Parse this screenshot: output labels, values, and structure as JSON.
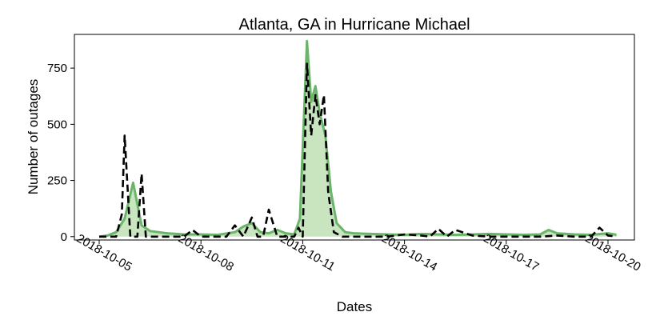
{
  "chart_data": {
    "type": "line",
    "title": "Atlanta, GA in Hurricane Michael",
    "xlabel": "Dates",
    "ylabel": "Number of outages",
    "x_ticks": [
      "2018-10-05",
      "2018-10-08",
      "2018-10-11",
      "2018-10-14",
      "2018-10-17",
      "2018-10-20"
    ],
    "y_ticks": [
      0,
      250,
      500,
      750
    ],
    "xlim": [
      "2018-10-05",
      "2018-10-20"
    ],
    "ylim": [
      -15,
      900
    ],
    "grid": false,
    "series": [
      {
        "style": "solid-filled",
        "color": "#6ab56a",
        "fill": "#c8e5c0",
        "x": [
          "2018-10-05T00:00",
          "2018-10-05T06:00",
          "2018-10-05T12:00",
          "2018-10-05T18:00",
          "2018-10-06T00:00",
          "2018-10-06T06:00",
          "2018-10-06T12:00",
          "2018-10-06T18:00",
          "2018-10-07T00:00",
          "2018-10-07T12:00",
          "2018-10-08T00:00",
          "2018-10-08T12:00",
          "2018-10-09T00:00",
          "2018-10-09T06:00",
          "2018-10-09T12:00",
          "2018-10-09T18:00",
          "2018-10-10T00:00",
          "2018-10-10T06:00",
          "2018-10-10T12:00",
          "2018-10-10T18:00",
          "2018-10-10T22:00",
          "2018-10-11T03:00",
          "2018-10-11T06:00",
          "2018-10-11T09:00",
          "2018-10-11T12:00",
          "2018-10-11T16:00",
          "2018-10-11T20:00",
          "2018-10-12T00:00",
          "2018-10-12T06:00",
          "2018-10-12T12:00",
          "2018-10-13T00:00",
          "2018-10-13T12:00",
          "2018-10-14T00:00",
          "2018-10-14T12:00",
          "2018-10-15T00:00",
          "2018-10-15T12:00",
          "2018-10-16T00:00",
          "2018-10-16T12:00",
          "2018-10-17T00:00",
          "2018-10-17T12:00",
          "2018-10-18T00:00",
          "2018-10-18T06:00",
          "2018-10-18T12:00",
          "2018-10-19T00:00",
          "2018-10-19T12:00",
          "2018-10-20T00:00",
          "2018-10-20T06:00"
        ],
        "y": [
          0,
          5,
          20,
          80,
          240,
          50,
          25,
          20,
          15,
          10,
          10,
          8,
          20,
          45,
          60,
          20,
          15,
          30,
          15,
          10,
          80,
          870,
          600,
          670,
          550,
          450,
          200,
          60,
          20,
          15,
          12,
          10,
          8,
          12,
          10,
          8,
          10,
          12,
          10,
          8,
          10,
          30,
          15,
          10,
          8,
          15,
          8
        ]
      },
      {
        "style": "dashed",
        "color": "#000000",
        "x": [
          "2018-10-05T00:00",
          "2018-10-05T06:00",
          "2018-10-05T12:00",
          "2018-10-05T16:00",
          "2018-10-05T18:00",
          "2018-10-05T22:00",
          "2018-10-06T03:00",
          "2018-10-06T06:00",
          "2018-10-06T09:00",
          "2018-10-06T14:00",
          "2018-10-06T18:00",
          "2018-10-07T00:00",
          "2018-10-07T12:00",
          "2018-10-07T18:00",
          "2018-10-08T00:00",
          "2018-10-08T06:00",
          "2018-10-08T12:00",
          "2018-10-08T18:00",
          "2018-10-09T00:00",
          "2018-10-09T06:00",
          "2018-10-09T12:00",
          "2018-10-09T16:00",
          "2018-10-09T20:00",
          "2018-10-10T00:00",
          "2018-10-10T06:00",
          "2018-10-10T12:00",
          "2018-10-10T18:00",
          "2018-10-10T21:00",
          "2018-10-11T00:00",
          "2018-10-11T03:00",
          "2018-10-11T06:00",
          "2018-10-11T09:00",
          "2018-10-11T12:00",
          "2018-10-11T15:00",
          "2018-10-11T18:00",
          "2018-10-11T22:00",
          "2018-10-12T04:00",
          "2018-10-12T12:00",
          "2018-10-13T00:00",
          "2018-10-13T12:00",
          "2018-10-14T00:00",
          "2018-10-14T12:00",
          "2018-10-14T18:00",
          "2018-10-15T00:00",
          "2018-10-15T06:00",
          "2018-10-15T12:00",
          "2018-10-16T00:00",
          "2018-10-16T12:00",
          "2018-10-17T00:00",
          "2018-10-17T12:00",
          "2018-10-18T00:00",
          "2018-10-18T12:00",
          "2018-10-19T00:00",
          "2018-10-19T12:00",
          "2018-10-19T18:00",
          "2018-10-20T00:00",
          "2018-10-20T06:00"
        ],
        "y": [
          0,
          0,
          0,
          100,
          450,
          0,
          0,
          280,
          0,
          0,
          0,
          0,
          0,
          30,
          0,
          0,
          0,
          0,
          50,
          0,
          85,
          0,
          0,
          120,
          0,
          0,
          0,
          40,
          0,
          770,
          450,
          630,
          500,
          630,
          200,
          20,
          0,
          0,
          0,
          0,
          10,
          5,
          0,
          35,
          0,
          30,
          5,
          0,
          0,
          0,
          0,
          5,
          0,
          0,
          40,
          5,
          0
        ]
      }
    ]
  }
}
